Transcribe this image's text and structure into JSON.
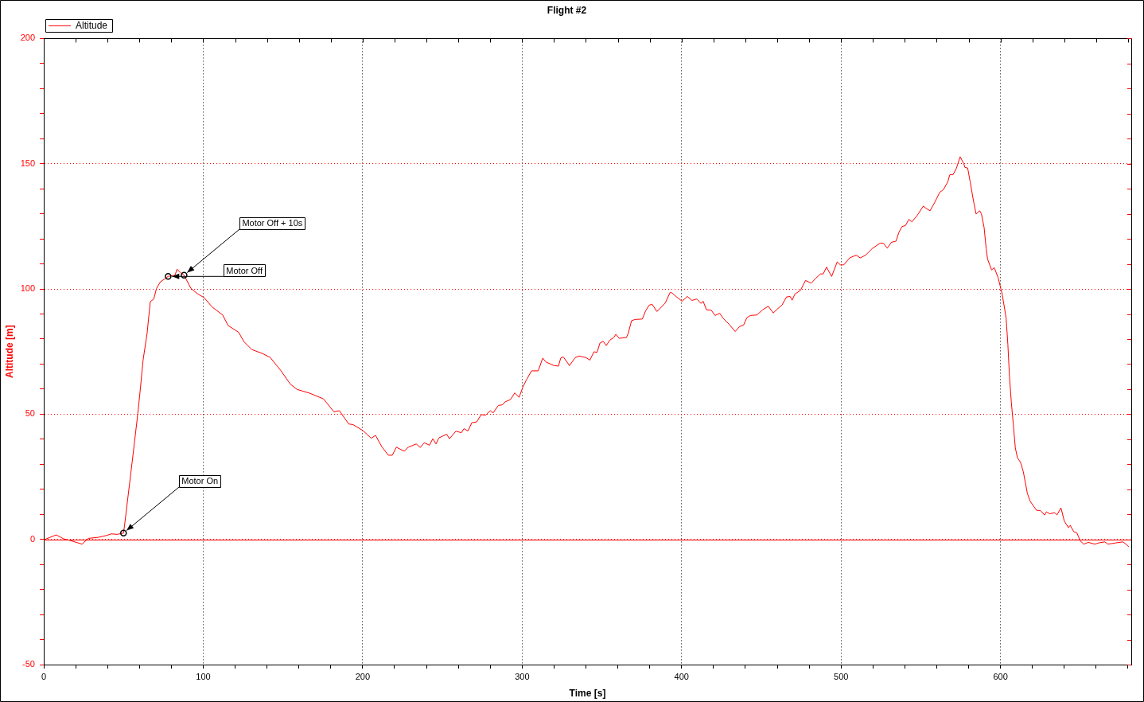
{
  "chart_data": {
    "type": "line",
    "title": "Flight #2",
    "xlabel": "Time [s]",
    "ylabel": "Altitude [m]",
    "series": [
      {
        "name": "Altitude",
        "color": "#ff0000",
        "x": [
          0.8,
          7.8,
          12.5,
          17.5,
          24,
          28,
          34,
          39,
          42.4,
          46,
          50,
          50.7,
          55.7,
          59,
          60.7,
          62.3,
          64.8,
          66.8,
          69,
          70.7,
          73.2,
          75.7,
          78,
          82.3,
          83.6,
          85.6,
          88,
          92.3,
          96.4,
          100.6,
          105.6,
          112.2,
          115.6,
          122.2,
          125.5,
          130.5,
          137.2,
          142.1,
          148.8,
          154.6,
          158.8,
          167.1,
          175.4,
          182,
          185.4,
          191.2,
          194,
          200.3,
          205.3,
          208.1,
          212,
          216.1,
          218.6,
          221.1,
          226.1,
          228.6,
          233.6,
          236.1,
          238.6,
          241.9,
          244,
          246,
          247.7,
          252.7,
          254.4,
          258.5,
          261.9,
          263.5,
          266,
          268.5,
          271.5,
          274.3,
          277.1,
          280.1,
          281.8,
          285.1,
          287.6,
          289.3,
          292.6,
          295.4,
          298.1,
          300.4,
          302.6,
          305.9,
          310.1,
          312.9,
          315,
          320,
          322.8,
          324.2,
          325.8,
          329.7,
          333.3,
          335.8,
          340,
          342.5,
          345,
          347,
          348.8,
          350.8,
          352.8,
          354.9,
          357.4,
          358.8,
          360.8,
          365.4,
          366.5,
          368.6,
          370.8,
          375.4,
          377.4,
          379.6,
          381.5,
          384.5,
          388.2,
          389.9,
          392.8,
          394,
          396.5,
          400.3,
          403.6,
          406.5,
          409.5,
          412.3,
          413.5,
          415.6,
          418.6,
          421,
          423.9,
          426.4,
          429.8,
          433.6,
          436.4,
          438.9,
          440.9,
          443.1,
          447.2,
          450.9,
          454.4,
          457.5,
          459.7,
          463,
          465.8,
          468.1,
          469.3,
          471,
          474.6,
          477.7,
          481.3,
          484.1,
          487.1,
          488.8,
          490.9,
          494.1,
          497.6,
          499.6,
          501.7,
          505.4,
          509.5,
          512,
          515.4,
          519.5,
          524.5,
          526.5,
          529,
          531.5,
          534.5,
          536.2,
          538.2,
          540.4,
          542.5,
          544.5,
          547.8,
          551.6,
          553.1,
          555.8,
          558.6,
          561.9,
          564.1,
          566.9,
          568.2,
          570.2,
          572.2,
          574.7,
          576.9,
          577.7,
          579.4,
          581,
          583,
          584.7,
          586.9,
          588,
          589.7,
          591,
          591.9,
          594.4,
          596.1,
          598.5,
          601,
          603.5,
          604.6,
          605.6,
          606.8,
          608,
          609.3,
          610.6,
          612.6,
          614.3,
          616.8,
          618.5,
          622.6,
          625.1,
          627.6,
          628.8,
          631,
          633.8,
          635.4,
          637.9,
          640,
          642.6,
          643.7,
          645.9,
          647.9,
          650,
          652.2,
          655,
          659.2,
          661.6,
          665.4,
          667.4,
          672.4,
          676.7,
          678.3,
          680.5
        ],
        "values": [
          0,
          1.8,
          0.2,
          -0.6,
          -1.9,
          0.4,
          0.8,
          1.5,
          2.2,
          2,
          2.5,
          5.7,
          32.3,
          50.3,
          60.9,
          71.6,
          82.2,
          94.9,
          96,
          100.2,
          102.9,
          103.9,
          105,
          105.5,
          107.9,
          106.6,
          105.5,
          100.2,
          98.1,
          96.5,
          92.8,
          89.6,
          85.4,
          82.7,
          79,
          75.8,
          74.2,
          72.6,
          67.3,
          62,
          59.9,
          58.3,
          56.1,
          50.9,
          51.4,
          46.1,
          45.8,
          43.4,
          40.4,
          41.5,
          37,
          33.6,
          33.6,
          36.8,
          35.2,
          36.8,
          38.1,
          36.7,
          38.6,
          37.6,
          40.2,
          38.1,
          40.5,
          42,
          40.2,
          43.2,
          42.6,
          44.2,
          43.3,
          46.6,
          46.9,
          49.8,
          49.6,
          51.4,
          50.5,
          53.5,
          53.7,
          54.9,
          55.8,
          58.5,
          56.7,
          60.7,
          63.6,
          67.3,
          67.3,
          72.4,
          70.8,
          69.4,
          69.2,
          72.4,
          72.9,
          69.4,
          72.6,
          73.2,
          72.6,
          71.6,
          74.9,
          74.7,
          78.4,
          79.1,
          77.4,
          79.5,
          80.6,
          81.9,
          80.3,
          80.6,
          82.2,
          87.3,
          87.8,
          88,
          91.2,
          93.5,
          93.9,
          91,
          93.3,
          94.6,
          98.6,
          98.4,
          97,
          95.1,
          97,
          95.4,
          96,
          94.2,
          95.1,
          91.7,
          91.5,
          89.4,
          90.3,
          88,
          85.9,
          83,
          85,
          85.6,
          88.5,
          89.4,
          89.6,
          91.7,
          93.1,
          90.4,
          91.8,
          93.6,
          96.8,
          97,
          95.5,
          97.9,
          99.5,
          103.4,
          102.3,
          104.2,
          106,
          106,
          108.7,
          105,
          110.8,
          109.6,
          109.6,
          112.4,
          113.5,
          112.4,
          113.5,
          116.1,
          118.3,
          118.3,
          116.3,
          118.6,
          119.1,
          122.5,
          124.9,
          125.3,
          127.8,
          126.8,
          129.4,
          133.1,
          132.3,
          131.2,
          134.4,
          138.6,
          139.6,
          142.7,
          145.6,
          145.6,
          148,
          152.8,
          150.1,
          148.5,
          148.3,
          142.7,
          135.3,
          129.9,
          131.2,
          130.1,
          124.6,
          116.1,
          111.9,
          107.6,
          108.5,
          104.5,
          98.1,
          88.5,
          77.9,
          65.2,
          54.6,
          46.1,
          36.5,
          32.6,
          30.7,
          27,
          18.5,
          15.3,
          11.6,
          11.5,
          9.7,
          11,
          10.2,
          10.7,
          9.8,
          12.6,
          7.3,
          4.7,
          5.6,
          3.1,
          2.6,
          -0.6,
          -1.9,
          -1.2,
          -1.9,
          -1.4,
          -1,
          -1.9,
          -1.4,
          -1,
          -1.7,
          -3
        ]
      }
    ],
    "xlim": [
      0,
      682
    ],
    "xticks": [
      0,
      {
        "value": 20,
        "label": null
      },
      {
        "value": 40,
        "label": null
      },
      {
        "value": 60,
        "label": null
      },
      {
        "value": 80,
        "label": null
      },
      100,
      {
        "value": 120,
        "label": null
      },
      {
        "value": 140,
        "label": null
      },
      {
        "value": 160,
        "label": null
      },
      {
        "value": 180,
        "label": null
      },
      200,
      {
        "value": 220,
        "label": null
      },
      {
        "value": 240,
        "label": null
      },
      {
        "value": 260,
        "label": null
      },
      {
        "value": 280,
        "label": null
      },
      300,
      {
        "value": 320,
        "label": null
      },
      {
        "value": 340,
        "label": null
      },
      {
        "value": 360,
        "label": null
      },
      {
        "value": 380,
        "label": null
      },
      400,
      {
        "value": 420,
        "label": null
      },
      {
        "value": 440,
        "label": null
      },
      {
        "value": 460,
        "label": null
      },
      {
        "value": 480,
        "label": null
      },
      500,
      {
        "value": 520,
        "label": null
      },
      {
        "value": 540,
        "label": null
      },
      {
        "value": 560,
        "label": null
      },
      {
        "value": 580,
        "label": null
      },
      600,
      {
        "value": 620,
        "label": null
      },
      {
        "value": 640,
        "label": null
      },
      {
        "value": 660,
        "label": null
      },
      {
        "value": 680,
        "label": null
      }
    ],
    "ylim": [
      -50,
      200
    ],
    "yticks": [
      -50,
      {
        "value": -40,
        "label": null
      },
      {
        "value": -30,
        "label": null
      },
      {
        "value": -20,
        "label": null
      },
      {
        "value": -10,
        "label": null
      },
      0,
      {
        "value": 10,
        "label": null
      },
      {
        "value": 20,
        "label": null
      },
      {
        "value": 30,
        "label": null
      },
      {
        "value": 40,
        "label": null
      },
      50,
      {
        "value": 60,
        "label": null
      },
      {
        "value": 70,
        "label": null
      },
      {
        "value": 80,
        "label": null
      },
      {
        "value": 90,
        "label": null
      },
      100,
      {
        "value": 110,
        "label": null
      },
      {
        "value": 120,
        "label": null
      },
      {
        "value": 130,
        "label": null
      },
      {
        "value": 140,
        "label": null
      },
      150,
      {
        "value": 160,
        "label": null
      },
      {
        "value": 170,
        "label": null
      },
      {
        "value": 180,
        "label": null
      },
      {
        "value": 190,
        "label": null
      },
      200
    ],
    "grid": true,
    "legend": "top left",
    "line_style": "solid",
    "ref_lines": [
      {
        "axis": "y",
        "value": 0,
        "color": "#ff0000"
      }
    ],
    "annotations": [
      {
        "text": "Motor Off + 10s",
        "x": 88,
        "y": 105.5
      },
      {
        "text": "Motor Off",
        "x": 78,
        "y": 105
      },
      {
        "text": "Motor On",
        "x": 50,
        "y": 2.5
      }
    ]
  }
}
